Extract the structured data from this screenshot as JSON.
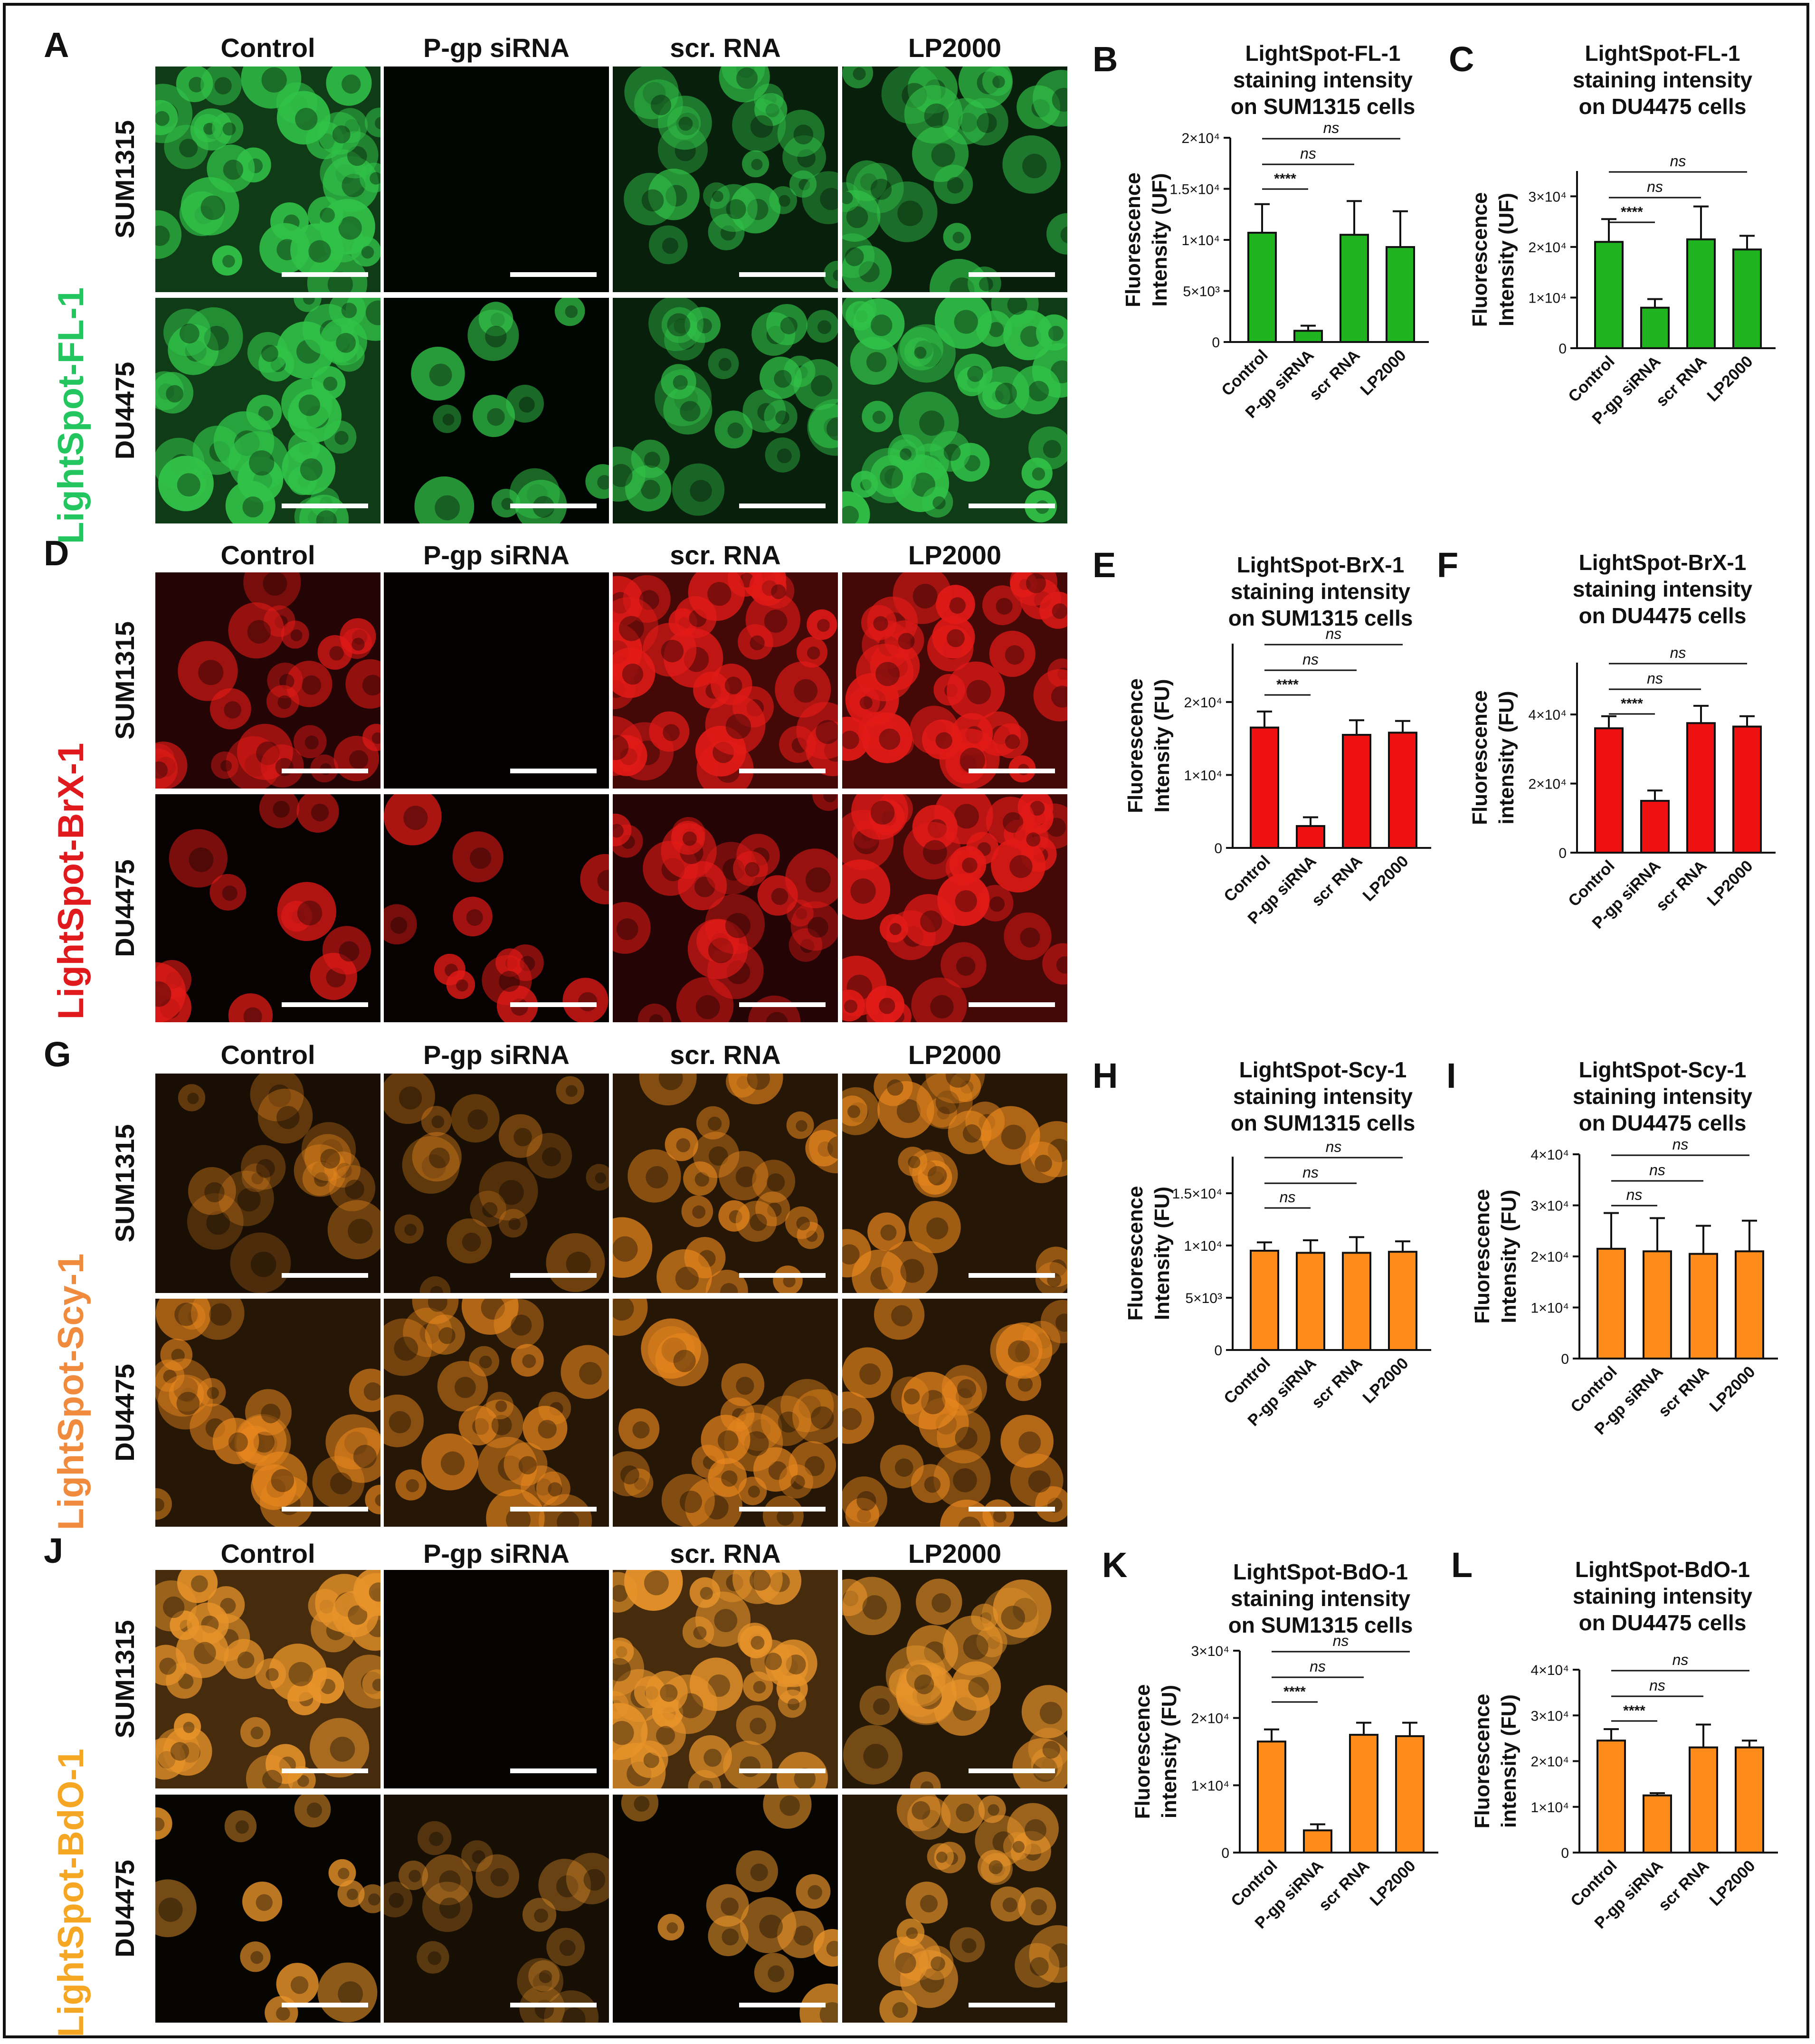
{
  "figure": {
    "sample_columns": [
      "Control",
      "P-gp siRNA",
      "scr. RNA",
      "LP2000"
    ],
    "cell_lines": [
      "SUM1315",
      "DU4475"
    ],
    "probe_colors": {
      "LightSpot-FL-1": "#22c55e",
      "LightSpot-BrX-1": "#e0191c",
      "LightSpot-Scy-1": "#f08a3c",
      "LightSpot-BdO-1": "#f5a623"
    },
    "micrograph_colors": {
      "green": "#31c248",
      "red": "#e11a17",
      "orange": "#e8871e",
      "amber": "#e7932a"
    },
    "rows": [
      {
        "letter": "A",
        "probe": "LightSpot-FL-1",
        "color_key": "green",
        "micrographs": {
          "SUM1315": {
            "Control": "bright",
            "P-gp siRNA": "dark",
            "scr. RNA": "medium",
            "LP2000": "medium"
          },
          "DU4475": {
            "Control": "bright",
            "P-gp siRNA": "sparse",
            "scr. RNA": "medium",
            "LP2000": "bright"
          }
        }
      },
      {
        "letter": "D",
        "probe": "LightSpot-BrX-1",
        "color_key": "red",
        "micrographs": {
          "SUM1315": {
            "Control": "medium",
            "P-gp siRNA": "dark",
            "scr. RNA": "bright",
            "LP2000": "bright"
          },
          "DU4475": {
            "Control": "sparse",
            "P-gp siRNA": "sparse",
            "scr. RNA": "medium",
            "LP2000": "bright"
          }
        }
      },
      {
        "letter": "G",
        "probe": "LightSpot-Scy-1",
        "color_key": "orange",
        "micrographs": {
          "SUM1315": {
            "Control": "dim",
            "P-gp siRNA": "dim",
            "scr. RNA": "medium",
            "LP2000": "medium"
          },
          "DU4475": {
            "Control": "medium",
            "P-gp siRNA": "medium",
            "scr. RNA": "medium",
            "LP2000": "medium"
          }
        }
      },
      {
        "letter": "J",
        "probe": "LightSpot-BdO-1",
        "color_key": "amber",
        "micrographs": {
          "SUM1315": {
            "Control": "bright",
            "P-gp siRNA": "dark",
            "scr. RNA": "bright",
            "LP2000": "medium"
          },
          "DU4475": {
            "Control": "sparse",
            "P-gp siRNA": "dim",
            "scr. RNA": "sparse",
            "LP2000": "medium"
          }
        }
      }
    ]
  },
  "chart_data": [
    {
      "panel": "B",
      "type": "bar",
      "title": [
        "LightSpot-FL-1",
        "staining intensity",
        "on SUM1315 cells"
      ],
      "ylabel": [
        "Fluorescence",
        "Intensity (UF)"
      ],
      "categories": [
        "Control",
        "P-gp siRNA",
        "scr RNA",
        "LP2000"
      ],
      "values": [
        10700,
        1100,
        10500,
        9300
      ],
      "errors": [
        2800,
        500,
        3300,
        3500
      ],
      "ylim": [
        0,
        20000
      ],
      "yticks": [
        0,
        5000,
        10000,
        15000,
        20000
      ],
      "yticklabels": [
        "0",
        "5×10³",
        "1×10⁴",
        "1.5×10⁴",
        "2×10⁴"
      ],
      "bar_color": "#1fb31f",
      "comparisons": [
        {
          "from": 0,
          "to": 1,
          "label": "****"
        },
        {
          "from": 0,
          "to": 2,
          "label": "ns"
        },
        {
          "from": 0,
          "to": 3,
          "label": "ns"
        }
      ]
    },
    {
      "panel": "C",
      "type": "bar",
      "title": [
        "LightSpot-FL-1",
        "staining intensity",
        "on DU4475 cells"
      ],
      "ylabel": [
        "Fluorescence",
        "Intensity (UF)"
      ],
      "categories": [
        "Control",
        "P-gp siRNA",
        "scr RNA",
        "LP2000"
      ],
      "values": [
        21000,
        8000,
        21500,
        19500
      ],
      "errors": [
        4500,
        1700,
        6500,
        2700
      ],
      "ylim": [
        0,
        35000
      ],
      "yticks": [
        0,
        10000,
        20000,
        30000
      ],
      "yticklabels": [
        "0",
        "1×10⁴",
        "2×10⁴",
        "3×10⁴"
      ],
      "bar_color": "#1fb31f",
      "comparisons": [
        {
          "from": 0,
          "to": 1,
          "label": "****"
        },
        {
          "from": 0,
          "to": 2,
          "label": "ns"
        },
        {
          "from": 0,
          "to": 3,
          "label": "ns"
        }
      ]
    },
    {
      "panel": "E",
      "type": "bar",
      "title": [
        "LightSpot-BrX-1",
        "staining intensity",
        "on SUM1315 cells"
      ],
      "ylabel": [
        "Fluorescence",
        "Intensity (FU)"
      ],
      "categories": [
        "Control",
        "P-gp siRNA",
        "scr RNA",
        "LP2000"
      ],
      "values": [
        16500,
        3000,
        15500,
        15800
      ],
      "errors": [
        2200,
        1200,
        2000,
        1600
      ],
      "ylim": [
        0,
        28000
      ],
      "yticks": [
        0,
        10000,
        20000
      ],
      "yticklabels": [
        "0",
        "1×10⁴",
        "2×10⁴"
      ],
      "bar_color": "#ee1111",
      "comparisons": [
        {
          "from": 0,
          "to": 1,
          "label": "****"
        },
        {
          "from": 0,
          "to": 2,
          "label": "ns"
        },
        {
          "from": 0,
          "to": 3,
          "label": "ns"
        }
      ]
    },
    {
      "panel": "F",
      "type": "bar",
      "title": [
        "LightSpot-BrX-1",
        "staining intensity",
        "on DU4475 cells"
      ],
      "ylabel": [
        "Fluorescence",
        "intensity (FU)"
      ],
      "categories": [
        "Control",
        "P-gp siRNA",
        "scr RNA",
        "LP2000"
      ],
      "values": [
        36000,
        15000,
        37500,
        36500
      ],
      "errors": [
        3500,
        3000,
        5000,
        3000
      ],
      "ylim": [
        0,
        55000
      ],
      "yticks": [
        0,
        20000,
        40000
      ],
      "yticklabels": [
        "0",
        "2×10⁴",
        "4×10⁴"
      ],
      "bar_color": "#ee1111",
      "comparisons": [
        {
          "from": 0,
          "to": 1,
          "label": "****"
        },
        {
          "from": 0,
          "to": 2,
          "label": "ns"
        },
        {
          "from": 0,
          "to": 3,
          "label": "ns"
        }
      ]
    },
    {
      "panel": "H",
      "type": "bar",
      "title": [
        "LightSpot-Scy-1",
        "staining intensity",
        "on SUM1315 cells"
      ],
      "ylabel": [
        "Fluorescence",
        "Intensity (FU)"
      ],
      "categories": [
        "Control",
        "P-gp siRNA",
        "scr RNA",
        "LP2000"
      ],
      "values": [
        9500,
        9300,
        9300,
        9400
      ],
      "errors": [
        800,
        1200,
        1500,
        1000
      ],
      "ylim": [
        0,
        18500
      ],
      "yticks": [
        0,
        5000,
        10000,
        15000
      ],
      "yticklabels": [
        "0",
        "5×10³",
        "1×10⁴",
        "1.5×10⁴"
      ],
      "bar_color": "#ff8c1a",
      "comparisons": [
        {
          "from": 0,
          "to": 1,
          "label": "ns"
        },
        {
          "from": 0,
          "to": 2,
          "label": "ns"
        },
        {
          "from": 0,
          "to": 3,
          "label": "ns"
        }
      ]
    },
    {
      "panel": "I",
      "type": "bar",
      "title": [
        "LightSpot-Scy-1",
        "staining intensity",
        "on DU4475 cells"
      ],
      "ylabel": [
        "Fluorescence",
        "Intensity (FU)"
      ],
      "categories": [
        "Control",
        "P-gp siRNA",
        "scr RNA",
        "LP2000"
      ],
      "values": [
        21500,
        21000,
        20500,
        21000
      ],
      "errors": [
        7000,
        6500,
        5500,
        6000
      ],
      "ylim": [
        0,
        40000
      ],
      "yticks": [
        0,
        10000,
        20000,
        30000,
        40000
      ],
      "yticklabels": [
        "0",
        "1×10⁴",
        "2×10⁴",
        "3×10⁴",
        "4×10⁴"
      ],
      "bar_color": "#ff8c1a",
      "comparisons": [
        {
          "from": 0,
          "to": 1,
          "label": "ns"
        },
        {
          "from": 0,
          "to": 2,
          "label": "ns"
        },
        {
          "from": 0,
          "to": 3,
          "label": "ns"
        }
      ]
    },
    {
      "panel": "K",
      "type": "bar",
      "title": [
        "LightSpot-BdO-1",
        "staining intensity",
        "on SUM1315 cells"
      ],
      "ylabel": [
        "Fluorescence",
        "intensity (FU)"
      ],
      "categories": [
        "Control",
        "P-gp siRNA",
        "scr RNA",
        "LP2000"
      ],
      "values": [
        16500,
        3300,
        17500,
        17300
      ],
      "errors": [
        1800,
        900,
        1800,
        2000
      ],
      "ylim": [
        0,
        30000
      ],
      "yticks": [
        0,
        10000,
        20000,
        30000
      ],
      "yticklabels": [
        "0",
        "1×10⁴",
        "2×10⁴",
        "3×10⁴"
      ],
      "bar_color": "#ff8c1a",
      "comparisons": [
        {
          "from": 0,
          "to": 1,
          "label": "****"
        },
        {
          "from": 0,
          "to": 2,
          "label": "ns"
        },
        {
          "from": 0,
          "to": 3,
          "label": "ns"
        }
      ]
    },
    {
      "panel": "L",
      "type": "bar",
      "title": [
        "LightSpot-BdO-1",
        "staining intensity",
        "on DU4475 cells"
      ],
      "ylabel": [
        "Fluorescence",
        "intensity (FU)"
      ],
      "categories": [
        "Control",
        "P-gp siRNA",
        "scr RNA",
        "LP2000"
      ],
      "values": [
        24500,
        12500,
        23000,
        23000
      ],
      "errors": [
        2500,
        500,
        5000,
        1500
      ],
      "ylim": [
        0,
        40000
      ],
      "yticks": [
        0,
        10000,
        20000,
        30000,
        40000
      ],
      "yticklabels": [
        "0",
        "1×10⁴",
        "2×10⁴",
        "3×10⁴",
        "4×10⁴"
      ],
      "bar_color": "#ff8c1a",
      "comparisons": [
        {
          "from": 0,
          "to": 1,
          "label": "****"
        },
        {
          "from": 0,
          "to": 2,
          "label": "ns"
        },
        {
          "from": 0,
          "to": 3,
          "label": "ns"
        }
      ]
    }
  ]
}
